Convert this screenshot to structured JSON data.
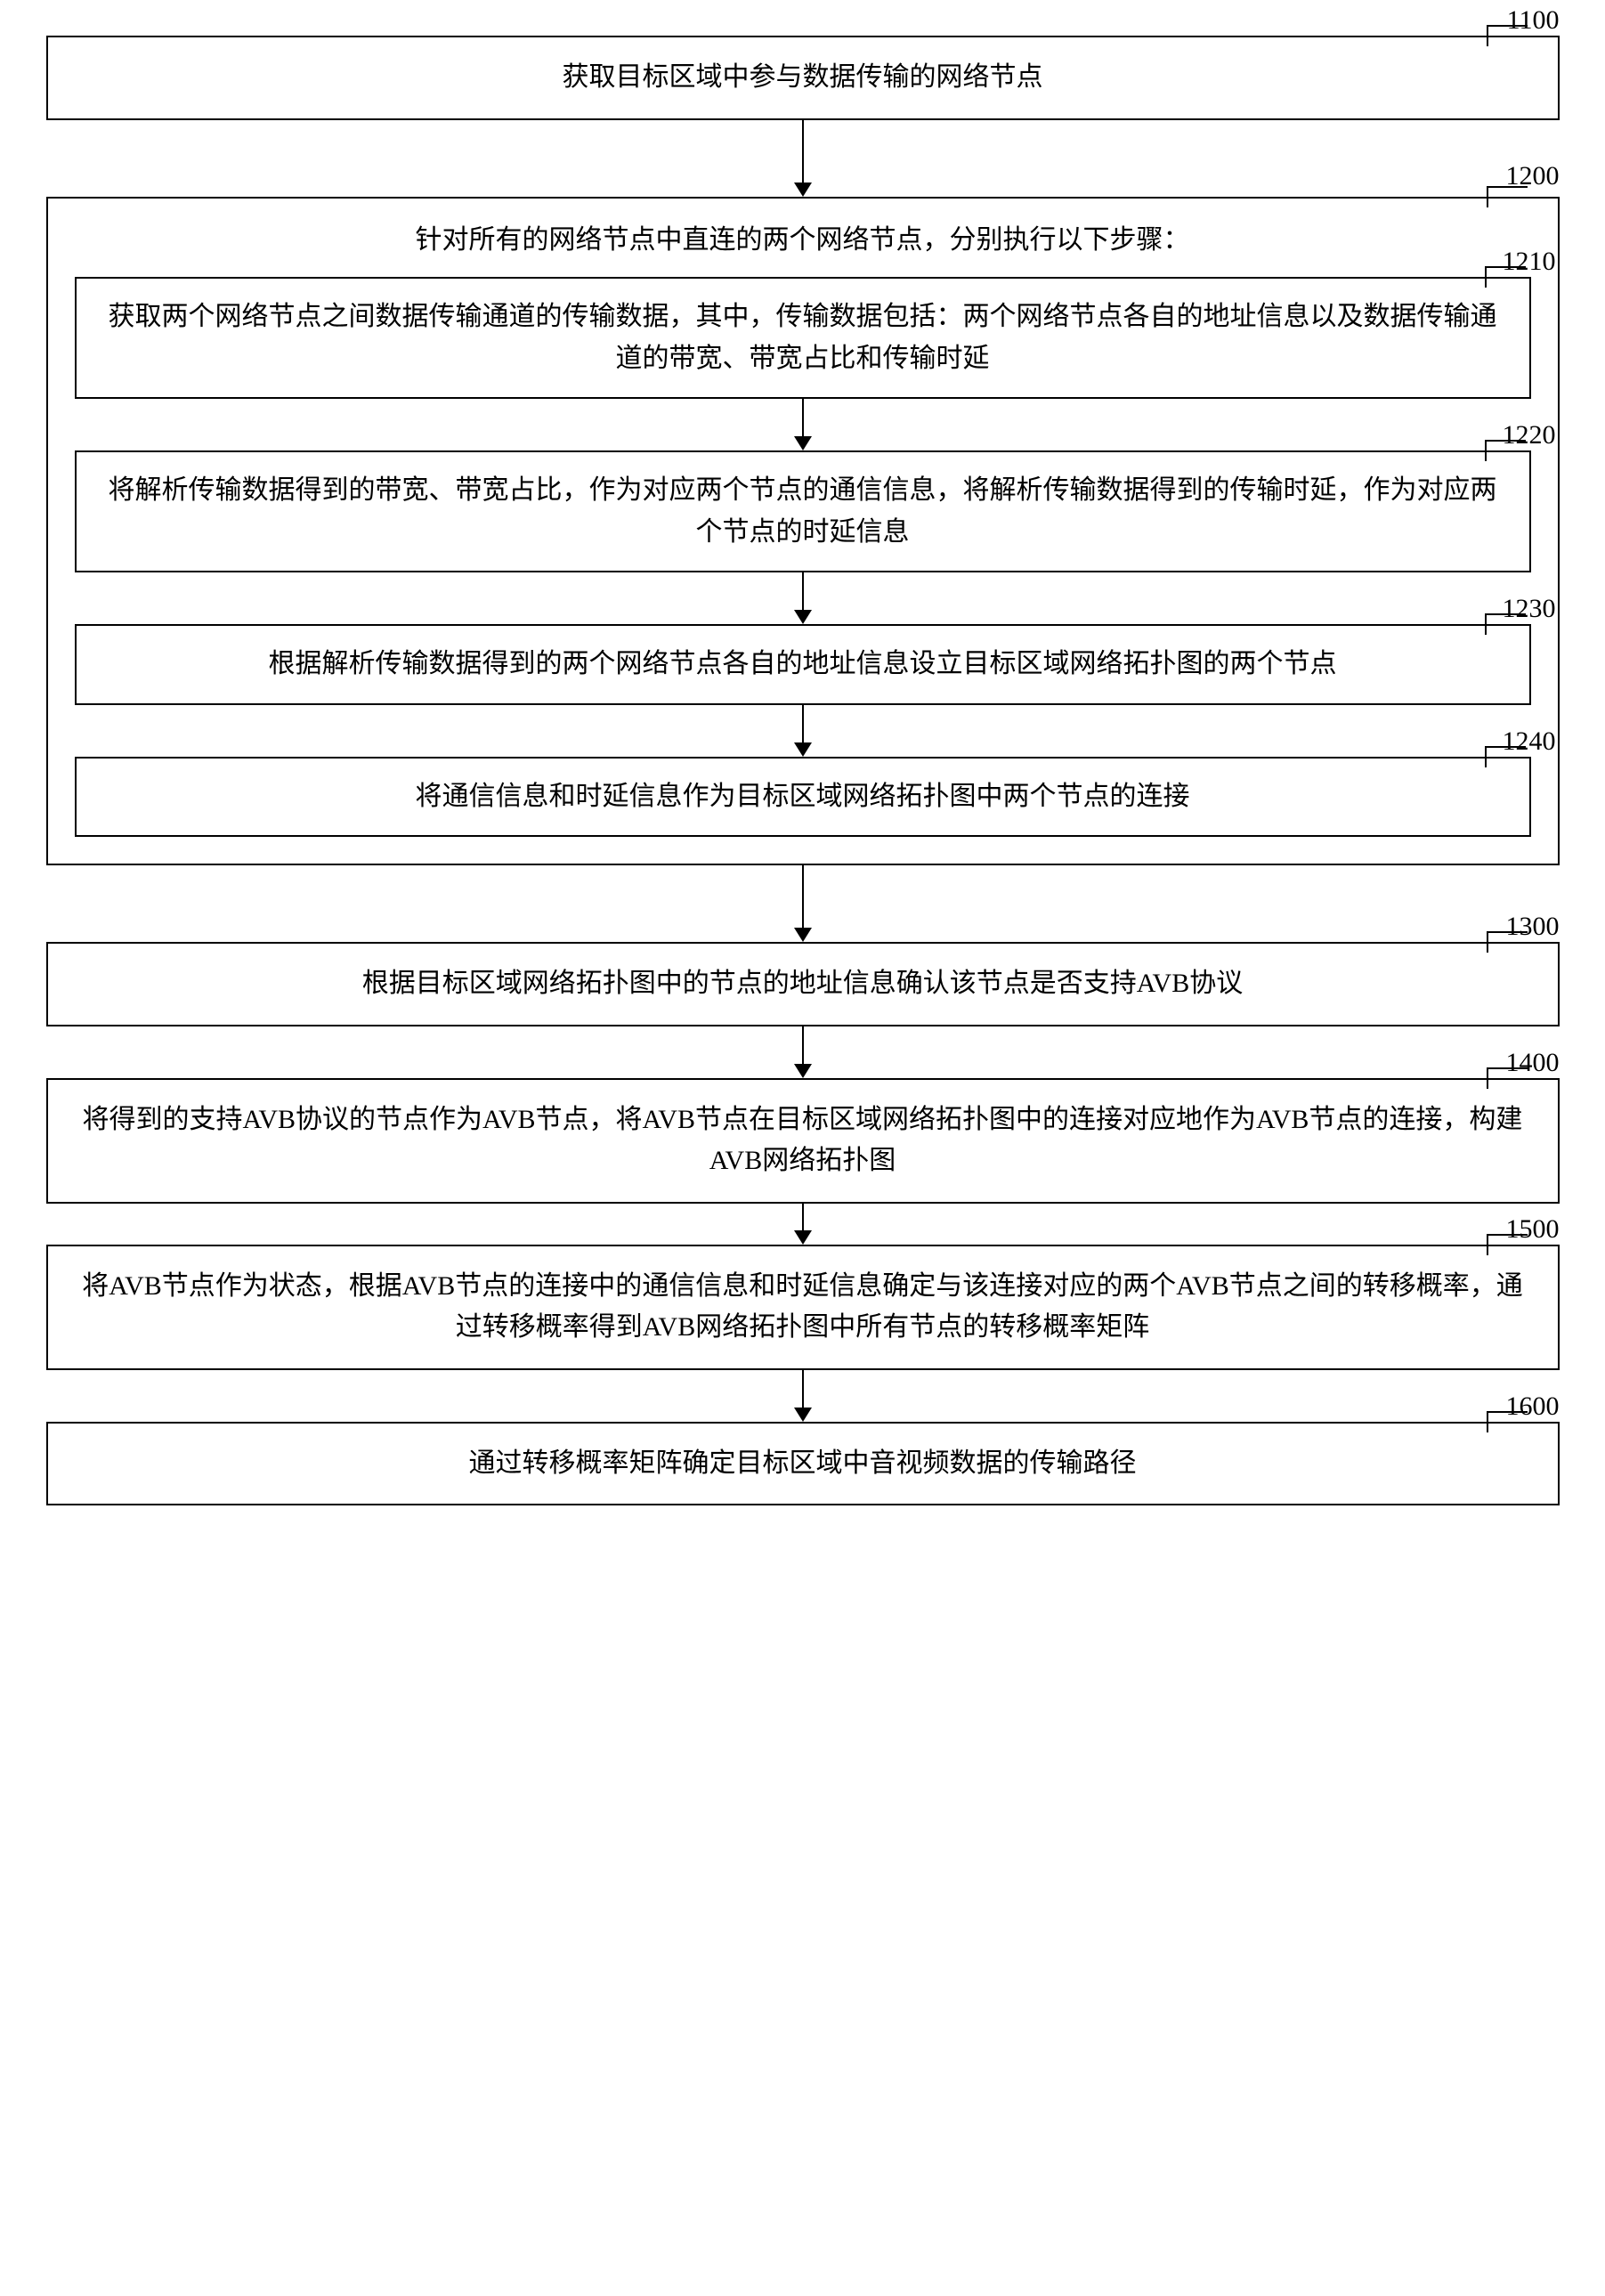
{
  "flowchart": {
    "type": "flowchart",
    "background_color": "#ffffff",
    "border_color": "#000000",
    "border_width": 2,
    "text_color": "#000000",
    "font_size": 30,
    "arrow_head_size": 16,
    "nodes": {
      "n1100": {
        "label_num": "1100",
        "text": "获取目标区域中参与数据传输的网络节点"
      },
      "n1200": {
        "label_num": "1200",
        "header": "针对所有的网络节点中直连的两个网络节点，分别执行以下步骤：",
        "children": {
          "n1210": {
            "label_num": "1210",
            "text": "获取两个网络节点之间数据传输通道的传输数据，其中，传输数据包括：两个网络节点各自的地址信息以及数据传输通道的带宽、带宽占比和传输时延"
          },
          "n1220": {
            "label_num": "1220",
            "text": "将解析传输数据得到的带宽、带宽占比，作为对应两个节点的通信信息，将解析传输数据得到的传输时延，作为对应两个节点的时延信息"
          },
          "n1230": {
            "label_num": "1230",
            "text": "根据解析传输数据得到的两个网络节点各自的地址信息设立目标区域网络拓扑图的两个节点"
          },
          "n1240": {
            "label_num": "1240",
            "text": "将通信信息和时延信息作为目标区域网络拓扑图中两个节点的连接"
          }
        }
      },
      "n1300": {
        "label_num": "1300",
        "text": "根据目标区域网络拓扑图中的节点的地址信息确认该节点是否支持AVB协议"
      },
      "n1400": {
        "label_num": "1400",
        "text": "将得到的支持AVB协议的节点作为AVB节点，将AVB节点在目标区域网络拓扑图中的连接对应地作为AVB节点的连接，构建AVB网络拓扑图"
      },
      "n1500": {
        "label_num": "1500",
        "text": "将AVB节点作为状态，根据AVB节点的连接中的通信信息和时延信息确定与该连接对应的两个AVB节点之间的转移概率，通过转移概率得到AVB网络拓扑图中所有节点的转移概率矩阵"
      },
      "n1600": {
        "label_num": "1600",
        "text": "通过转移概率矩阵确定目标区域中音视频数据的传输路径"
      }
    },
    "edges": [
      [
        "n1100",
        "n1200"
      ],
      [
        "n1210",
        "n1220"
      ],
      [
        "n1220",
        "n1230"
      ],
      [
        "n1230",
        "n1240"
      ],
      [
        "n1200",
        "n1300"
      ],
      [
        "n1300",
        "n1400"
      ],
      [
        "n1400",
        "n1500"
      ],
      [
        "n1500",
        "n1600"
      ]
    ]
  }
}
